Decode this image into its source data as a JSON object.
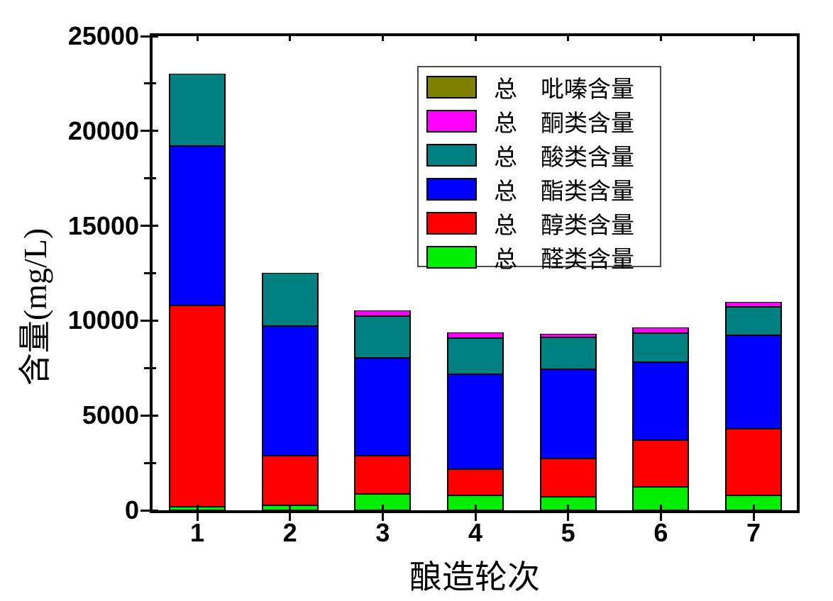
{
  "chart_data": {
    "type": "bar",
    "stacked": true,
    "title": "",
    "xlabel": "酿造轮次",
    "ylabel": "含量(mg/L)",
    "categories": [
      "1",
      "2",
      "3",
      "4",
      "5",
      "6",
      "7"
    ],
    "series": [
      {
        "name": "总　醛类含量",
        "color": "#00EE00",
        "values": [
          200,
          250,
          850,
          800,
          700,
          1250,
          800
        ]
      },
      {
        "name": "总　醇类含量",
        "color": "#FF0000",
        "values": [
          10600,
          2600,
          2000,
          1400,
          2000,
          2450,
          3500
        ]
      },
      {
        "name": "总　酯类含量",
        "color": "#0000FF",
        "values": [
          8400,
          6850,
          5150,
          5000,
          4700,
          4100,
          4950
        ]
      },
      {
        "name": "总　酸类含量",
        "color": "#008080",
        "values": [
          3800,
          2800,
          2200,
          1900,
          1700,
          1550,
          1500
        ]
      },
      {
        "name": "总　酮类含量",
        "color": "#FF00FF",
        "values": [
          0,
          0,
          300,
          300,
          200,
          300,
          250
        ]
      },
      {
        "name": "总　吡嗪含量",
        "color": "#808000",
        "values": [
          0,
          0,
          0,
          0,
          0,
          0,
          0
        ]
      }
    ],
    "bar_totals": [
      23000,
      12500,
      10500,
      9400,
      9300,
      9650,
      11000
    ],
    "ylim": [
      0,
      25000
    ],
    "ytick_major_step": 5000,
    "ytick_minor_step": 2500,
    "ytick_labels": [
      "0",
      "5000",
      "10000",
      "15000",
      "20000",
      "25000"
    ],
    "grid": false,
    "legend_position": "inside-upper-right",
    "legend_order_top_to_bottom": [
      "总　吡嗪含量",
      "总　酮类含量",
      "总　酸类含量",
      "总　酯类含量",
      "总　醇类含量",
      "总　醛类含量"
    ],
    "frame_color": "#000000",
    "background_color": "#FFFFFF"
  }
}
